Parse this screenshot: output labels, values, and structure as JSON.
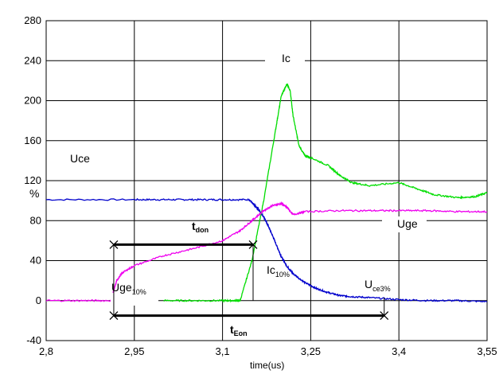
{
  "chart_data": {
    "type": "line",
    "xlabel": "time(us)",
    "ylabel": "%",
    "xlim": [
      2.8,
      3.55
    ],
    "ylim": [
      -40,
      280
    ],
    "grid": true,
    "xticks": [
      "2,8",
      "2,95",
      "3,1",
      "3,25",
      "3,4",
      "3,55"
    ],
    "yticks": [
      "-40",
      "0",
      "40",
      "80",
      "120",
      "160",
      "200",
      "240",
      "280"
    ],
    "series": [
      {
        "name": "Uce",
        "color": "#0000cc",
        "x": [
          2.8,
          2.95,
          3.0,
          3.05,
          3.1,
          3.145,
          3.15,
          3.16,
          3.17,
          3.18,
          3.19,
          3.2,
          3.21,
          3.22,
          3.24,
          3.26,
          3.28,
          3.3,
          3.32,
          3.35,
          3.4,
          3.45,
          3.5,
          3.55
        ],
        "y": [
          101,
          101,
          101,
          101,
          101,
          101,
          98,
          92,
          84,
          72,
          58,
          44,
          34,
          27,
          18,
          12,
          8,
          5,
          4,
          3,
          1,
          0,
          0,
          -1
        ]
      },
      {
        "name": "Ic",
        "color": "#00dd00",
        "x": [
          2.8,
          2.95,
          3.0,
          3.05,
          3.1,
          3.12,
          3.13,
          3.15,
          3.17,
          3.19,
          3.2,
          3.21,
          3.215,
          3.22,
          3.23,
          3.24,
          3.25,
          3.28,
          3.3,
          3.32,
          3.35,
          3.4,
          3.43,
          3.46,
          3.5,
          3.53,
          3.55
        ],
        "y": [
          null,
          null,
          0,
          0,
          0,
          0,
          0,
          40,
          100,
          170,
          205,
          217,
          210,
          185,
          155,
          145,
          143,
          135,
          125,
          118,
          115,
          118,
          112,
          106,
          103,
          104,
          108
        ]
      },
      {
        "name": "Uge",
        "color": "#ee00ee",
        "x": [
          2.8,
          2.86,
          2.91,
          2.915,
          2.92,
          2.93,
          2.95,
          3.0,
          3.05,
          3.1,
          3.13,
          3.15,
          3.17,
          3.185,
          3.2,
          3.21,
          3.22,
          3.24,
          3.3,
          3.35,
          3.4,
          3.45,
          3.5,
          3.55
        ],
        "y": [
          0,
          0,
          0,
          10,
          20,
          28,
          35,
          45,
          52,
          60,
          70,
          80,
          90,
          95,
          97,
          93,
          86,
          89,
          90,
          90,
          90,
          90,
          89,
          89
        ]
      }
    ],
    "annotations": {
      "uce": "Uce",
      "ic": "Ic",
      "uge": "Uge",
      "uge10_main": "Uge",
      "uge10_sub": "10%",
      "ic10_main": "Ic",
      "ic10_sub": "10%",
      "uce3_main": "U",
      "uce3_sub": "ce3%",
      "tdon_main": "t",
      "tdon_sub": "don",
      "teon_main": "t",
      "teon_sub": "Eon"
    }
  }
}
